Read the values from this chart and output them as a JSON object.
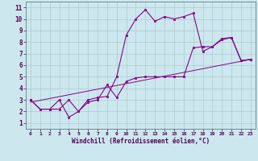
{
  "xlabel": "Windchill (Refroidissement éolien,°C)",
  "bg_color": "#cce8ee",
  "line_color": "#880088",
  "grid_color": "#aacccc",
  "xlim": [
    -0.5,
    23.5
  ],
  "ylim": [
    0.5,
    11.5
  ],
  "yticks": [
    1,
    2,
    3,
    4,
    5,
    6,
    7,
    8,
    9,
    10,
    11
  ],
  "xticks": [
    0,
    1,
    2,
    3,
    4,
    5,
    6,
    7,
    8,
    9,
    10,
    11,
    12,
    13,
    14,
    15,
    16,
    17,
    18,
    19,
    20,
    21,
    22,
    23
  ],
  "line1_x": [
    0,
    1,
    2,
    3,
    4,
    5,
    6,
    7,
    8,
    9,
    10,
    11,
    12,
    13,
    14,
    15,
    16,
    17,
    18,
    19,
    20,
    21,
    22,
    23
  ],
  "line1_y": [
    3.0,
    2.2,
    2.2,
    3.0,
    1.5,
    2.0,
    3.0,
    3.2,
    3.3,
    5.0,
    8.6,
    10.0,
    10.8,
    9.8,
    10.2,
    10.0,
    10.2,
    10.5,
    7.2,
    7.6,
    8.2,
    8.4,
    6.4,
    6.5
  ],
  "line2_x": [
    0,
    1,
    2,
    3,
    4,
    5,
    6,
    7,
    8,
    9,
    10,
    11,
    12,
    13,
    14,
    15,
    16,
    17,
    18,
    19,
    20,
    21,
    22,
    23
  ],
  "line2_y": [
    3.0,
    2.2,
    2.2,
    2.2,
    3.0,
    2.0,
    2.8,
    3.0,
    4.3,
    3.2,
    4.6,
    4.9,
    5.0,
    5.0,
    5.0,
    5.0,
    5.0,
    7.5,
    7.6,
    7.6,
    8.3,
    8.4,
    6.4,
    6.5
  ],
  "line3_x": [
    0,
    23
  ],
  "line3_y": [
    2.8,
    6.5
  ]
}
